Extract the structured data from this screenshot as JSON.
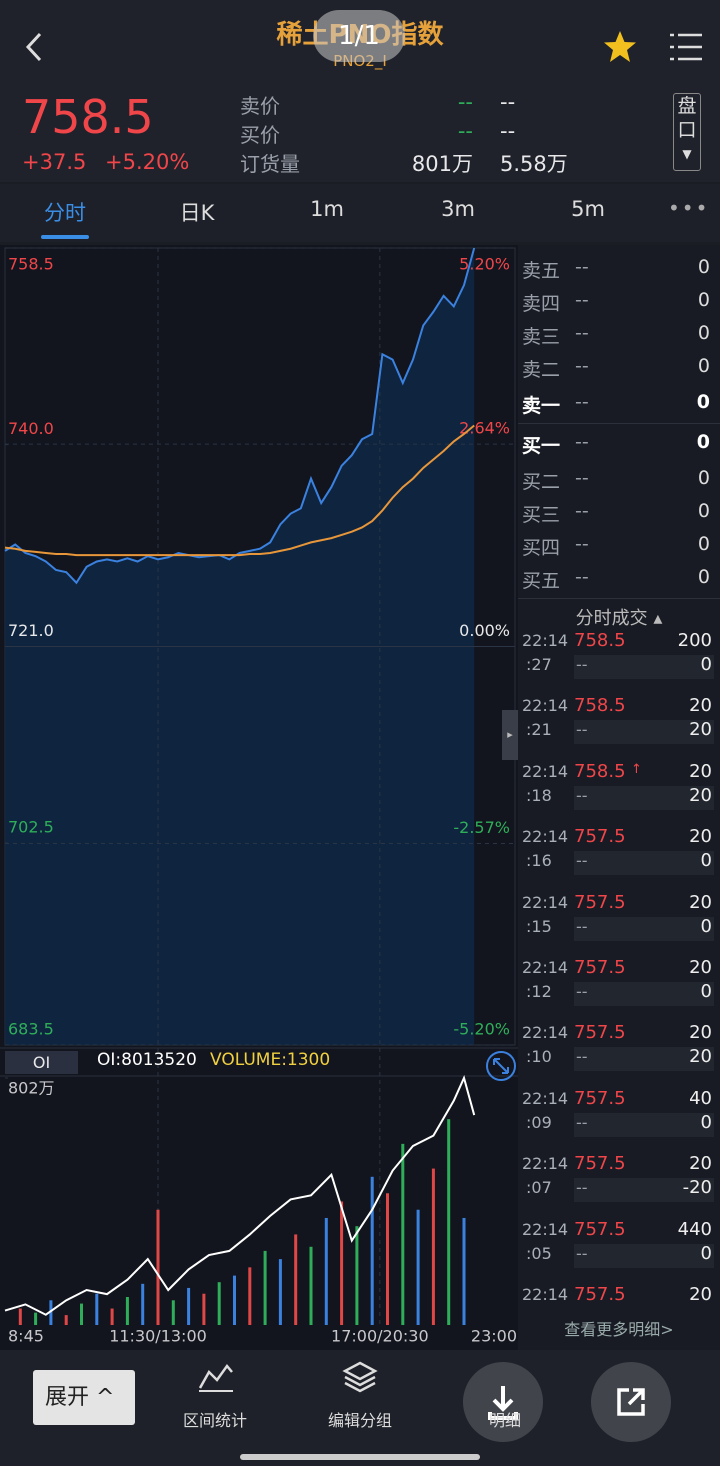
{
  "status_overlay": "1/1",
  "header": {
    "title": "稀土PNO指数",
    "subtitle": "PNO2_I"
  },
  "quote": {
    "price": 758.5,
    "change": "+37.5",
    "change_pct": "+5.20%",
    "fields": [
      {
        "label": "卖价",
        "v1": "--",
        "v2": "--"
      },
      {
        "label": "买价",
        "v1": "--",
        "v2": "--"
      },
      {
        "label": "订货量",
        "v1": "801万",
        "v2": "5.58万"
      }
    ],
    "panel_button": "盘口"
  },
  "tabs": [
    "分时",
    "日K",
    "1m",
    "3m",
    "5m"
  ],
  "chart_data": [
    {
      "type": "line",
      "x": [
        0,
        2,
        4,
        6,
        8,
        10,
        12,
        14,
        16,
        18,
        20,
        22,
        24,
        26,
        28,
        30,
        32,
        34,
        36,
        38,
        40,
        42,
        44,
        46,
        48,
        50,
        52,
        54,
        56,
        58,
        60,
        62,
        64,
        66,
        68,
        70,
        72,
        74,
        76,
        78,
        80,
        82,
        84,
        86,
        88,
        90,
        92
      ],
      "series": [
        {
          "color": "#3b82e0",
          "fill": "#0e2745",
          "values": [
            730.0,
            730.6,
            729.8,
            729.5,
            729.0,
            728.2,
            728.0,
            727.0,
            728.5,
            729.0,
            729.2,
            729.0,
            729.3,
            729.0,
            729.5,
            729.2,
            729.4,
            729.8,
            729.6,
            729.4,
            729.5,
            729.6,
            729.2,
            729.8,
            730.0,
            730.2,
            730.8,
            732.5,
            733.5,
            734.0,
            736.8,
            734.5,
            736.0,
            738.0,
            739.0,
            740.5,
            741.0,
            748.5,
            748.0,
            745.8,
            748.0,
            751.2,
            752.5,
            754.0,
            753.0,
            755.0,
            758.5
          ]
        },
        {
          "color": "#e8963a",
          "values": [
            730.3,
            730.2,
            730.0,
            729.9,
            729.8,
            729.7,
            729.7,
            729.6,
            729.6,
            729.6,
            729.6,
            729.6,
            729.6,
            729.6,
            729.6,
            729.6,
            729.6,
            729.6,
            729.6,
            729.6,
            729.6,
            729.6,
            729.6,
            729.6,
            729.7,
            729.7,
            729.8,
            730.0,
            730.2,
            730.5,
            730.8,
            731.0,
            731.2,
            731.5,
            731.8,
            732.2,
            732.8,
            733.8,
            735.0,
            736.0,
            736.8,
            737.8,
            738.6,
            739.4,
            740.3,
            741.0,
            741.8
          ]
        }
      ],
      "xlim": [
        0,
        100
      ],
      "xticks": [
        {
          "value": 0,
          "label": "8:45"
        },
        {
          "value": 30,
          "label": "11:30/13:00"
        },
        {
          "value": 73.5,
          "label": "17:00/20:30"
        },
        {
          "value": 100,
          "label": "23:00"
        }
      ],
      "ylim": [
        683.5,
        758.5
      ],
      "yticks": [
        683.5,
        702.5,
        {
          "value": 721,
          "label": "721.0"
        },
        {
          "value": 740,
          "label": "740.0"
        },
        758.5
      ],
      "y2lim": [
        -5.2,
        5.2
      ],
      "y2ticks": [
        {
          "value": -5.2,
          "label": "-5.20%"
        },
        {
          "value": -2.57,
          "label": "-2.57%"
        },
        {
          "value": 0,
          "label": "0.00%"
        },
        {
          "value": 2.64,
          "label": "2.64%"
        },
        {
          "value": 5.2,
          "label": "5.20%"
        }
      ],
      "grid": true
    },
    {
      "type": "line",
      "tab": "OI",
      "oi_label": "OI:8013520",
      "volume_label": "VOLUME:1300",
      "x": [
        0,
        4,
        8,
        12,
        16,
        20,
        24,
        28,
        32,
        36,
        40,
        44,
        48,
        52,
        56,
        60,
        64,
        68,
        72,
        76,
        80,
        84,
        88,
        90,
        92
      ],
      "series": [
        {
          "color": "#ffffff",
          "values": [
            790.7,
            791.0,
            790.5,
            791.2,
            791.7,
            791.5,
            792.2,
            793.2,
            791.7,
            792.7,
            793.4,
            793.6,
            794.4,
            795.3,
            796.1,
            796.3,
            797.3,
            794.1,
            795.6,
            797.5,
            798.7,
            799.2,
            800.9,
            802.0,
            800.2
          ]
        }
      ],
      "ylim": [
        790,
        802
      ],
      "yticks": [
        {
          "value": 802,
          "label": "802万"
        }
      ],
      "volume": {
        "x": [
          3,
          6,
          9,
          12,
          15,
          18,
          21,
          24,
          27,
          30,
          33,
          36,
          39,
          42,
          45,
          48,
          51,
          54,
          57,
          60,
          63,
          66,
          69,
          72,
          75,
          78,
          81,
          84,
          87,
          90
        ],
        "values": [
          200,
          150,
          300,
          120,
          260,
          380,
          200,
          340,
          500,
          1400,
          300,
          450,
          380,
          520,
          600,
          700,
          900,
          800,
          1100,
          950,
          1300,
          1500,
          1200,
          1800,
          1600,
          2200,
          1400,
          1900,
          2500,
          1300
        ],
        "colors": [
          "#e04848",
          "#2fae5a",
          "#3b82e0"
        ],
        "ylim": [
          0,
          3000
        ]
      }
    }
  ],
  "order_book": {
    "asks": [
      {
        "label": "卖五",
        "price": "--",
        "volume": 0
      },
      {
        "label": "卖四",
        "price": "--",
        "volume": 0
      },
      {
        "label": "卖三",
        "price": "--",
        "volume": 0
      },
      {
        "label": "卖二",
        "price": "--",
        "volume": 0
      },
      {
        "label": "卖一",
        "price": "--",
        "volume": 0
      }
    ],
    "bids": [
      {
        "label": "买一",
        "price": "--",
        "volume": 0
      },
      {
        "label": "买二",
        "price": "--",
        "volume": 0
      },
      {
        "label": "买三",
        "price": "--",
        "volume": 0
      },
      {
        "label": "买四",
        "price": "--",
        "volume": 0
      },
      {
        "label": "买五",
        "price": "--",
        "volume": 0
      }
    ]
  },
  "trades": {
    "title": "分时成交",
    "more": "查看更多明细>",
    "rows": [
      {
        "time": "22:14",
        "sec": ":27",
        "price": 758.5,
        "volume": 200,
        "price2": "--",
        "volume2": 0
      },
      {
        "time": "22:14",
        "sec": ":21",
        "price": 758.5,
        "volume": 20,
        "price2": "--",
        "volume2": 20
      },
      {
        "time": "22:14",
        "sec": ":18",
        "price": 758.5,
        "volume": 20,
        "price2": "--",
        "volume2": 20,
        "up": true
      },
      {
        "time": "22:14",
        "sec": ":16",
        "price": 757.5,
        "volume": 20,
        "price2": "--",
        "volume2": 0
      },
      {
        "time": "22:14",
        "sec": ":15",
        "price": 757.5,
        "volume": 20,
        "price2": "--",
        "volume2": 0
      },
      {
        "time": "22:14",
        "sec": ":12",
        "price": 757.5,
        "volume": 20,
        "price2": "--",
        "volume2": 0
      },
      {
        "time": "22:14",
        "sec": ":10",
        "price": 757.5,
        "volume": 20,
        "price2": "--",
        "volume2": 20
      },
      {
        "time": "22:14",
        "sec": ":09",
        "price": 757.5,
        "volume": 40,
        "price2": "--",
        "volume2": 0
      },
      {
        "time": "22:14",
        "sec": ":07",
        "price": 757.5,
        "volume": 20,
        "price2": "--",
        "volume2": -20
      },
      {
        "time": "22:14",
        "sec": ":05",
        "price": 757.5,
        "volume": 440,
        "price2": "--",
        "volume2": 0
      },
      {
        "time": "22:14",
        "price": 757.5,
        "volume": 20
      }
    ]
  },
  "toolbar": {
    "expand": "展开",
    "items": [
      "区间统计",
      "编辑分组",
      "明细"
    ]
  }
}
